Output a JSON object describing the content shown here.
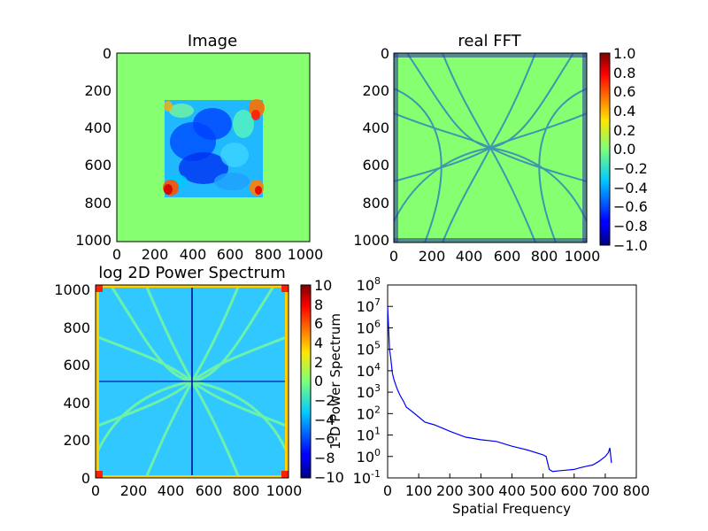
{
  "colors": {
    "jet_green": "#86ff70",
    "line_blue": "#0000ff",
    "frame": "#000000"
  },
  "chart_data": [
    {
      "type": "heatmap",
      "title": "Image",
      "xlabel": "",
      "ylabel": "",
      "x_ticks": [
        "0",
        "200",
        "400",
        "600",
        "800",
        "1000"
      ],
      "y_ticks": [
        "0",
        "200",
        "400",
        "600",
        "800",
        "1000"
      ],
      "xlim": [
        0,
        1024
      ],
      "ylim": [
        1024,
        0
      ],
      "y_inverted": true,
      "background_value": 0.0,
      "content": "square textured region spanning roughly x 256–768, y 256–768; mostly cyan/blue, with red corners",
      "colormap": "jet",
      "colorbar": false
    },
    {
      "type": "heatmap",
      "title": "real FFT",
      "xlabel": "",
      "ylabel": "",
      "x_ticks": [
        "0",
        "200",
        "400",
        "600",
        "800",
        "1000"
      ],
      "y_ticks": [
        "0",
        "200",
        "400",
        "600",
        "800",
        "1000"
      ],
      "xlim": [
        0,
        1024
      ],
      "ylim": [
        1024,
        0
      ],
      "y_inverted": true,
      "colormap": "jet",
      "colorbar": true,
      "colorbar_ticks": [
        "1.0",
        "0.8",
        "0.6",
        "0.4",
        "0.2",
        "0.0",
        "−0.2",
        "−0.4",
        "−0.6",
        "−0.8",
        "−1.0"
      ],
      "colorbar_range": [
        -1.0,
        1.0
      ],
      "content": "noisy field centred on 0 with curved diagonal streaks crossing at the centre; noisy edges"
    },
    {
      "type": "heatmap",
      "title": "log 2D Power Spectrum",
      "xlabel": "",
      "ylabel": "",
      "x_ticks": [
        "0",
        "200",
        "400",
        "600",
        "800",
        "1000"
      ],
      "y_ticks": [
        "0",
        "200",
        "400",
        "600",
        "800",
        "1000"
      ],
      "xlim": [
        0,
        1024
      ],
      "ylim": [
        0,
        1024
      ],
      "y_inverted": false,
      "colormap": "jet",
      "colorbar": true,
      "colorbar_ticks": [
        "10",
        "8",
        "6",
        "4",
        "2",
        "0",
        "−2",
        "−4",
        "−6",
        "−8",
        "−10"
      ],
      "colorbar_range": [
        -10,
        10
      ],
      "content": "mostly cyan field with green curved arcs through the centre; red/orange at the corners"
    },
    {
      "type": "line",
      "title": "",
      "xlabel": "Spatial Frequency",
      "ylabel": "1-D Power Spectrum",
      "x_ticks": [
        "0",
        "100",
        "200",
        "300",
        "400",
        "500",
        "600",
        "700",
        "800"
      ],
      "y_ticks": [
        "10^-1",
        "10^0",
        "10^1",
        "10^2",
        "10^3",
        "10^4",
        "10^5",
        "10^6",
        "10^7",
        "10^8"
      ],
      "xlim": [
        0,
        800
      ],
      "ylim": [
        0.1,
        100000000
      ],
      "y_scale": "log",
      "grid": false,
      "series": [
        {
          "color": "#0000ff",
          "x": [
            0,
            3,
            6,
            10,
            15,
            20,
            30,
            40,
            50,
            60,
            80,
            100,
            120,
            150,
            180,
            200,
            250,
            300,
            350,
            400,
            450,
            500,
            510,
            520,
            530,
            560,
            600,
            620,
            640,
            660,
            680,
            700,
            710,
            715,
            720
          ],
          "y": [
            10000000,
            1000000,
            100000,
            40000,
            8000,
            4000,
            1500,
            700,
            400,
            200,
            120,
            70,
            40,
            30,
            20,
            15,
            8,
            6,
            5,
            3,
            2,
            1.2,
            1,
            0.25,
            0.2,
            0.22,
            0.25,
            0.3,
            0.35,
            0.4,
            0.6,
            1,
            1.5,
            2.5,
            0.5
          ]
        }
      ]
    }
  ]
}
